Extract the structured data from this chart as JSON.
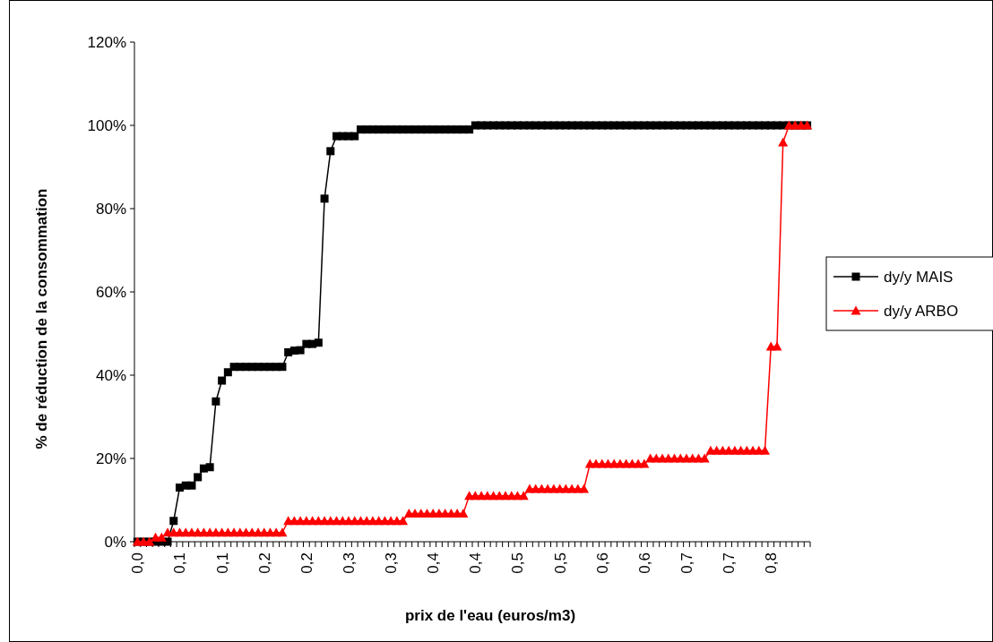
{
  "chart_data": {
    "type": "line",
    "xlabel": "prix de l'eau (euros/m3)",
    "ylabel": "% de réduction de la consommation",
    "categories": [
      "0,0",
      null,
      null,
      null,
      null,
      null,
      null,
      "0,1",
      null,
      null,
      null,
      null,
      null,
      null,
      "0,1",
      null,
      null,
      null,
      null,
      null,
      null,
      "0,2",
      null,
      null,
      null,
      null,
      null,
      null,
      "0,2",
      null,
      null,
      null,
      null,
      null,
      null,
      "0,3",
      null,
      null,
      null,
      null,
      null,
      null,
      "0,3",
      null,
      null,
      null,
      null,
      null,
      null,
      "0,4",
      null,
      null,
      null,
      null,
      null,
      null,
      "0,4",
      null,
      null,
      null,
      null,
      null,
      null,
      "0,5",
      null,
      null,
      null,
      null,
      null,
      null,
      "0,5",
      null,
      null,
      null,
      null,
      null,
      null,
      "0,6",
      null,
      null,
      null,
      null,
      null,
      null,
      "0,6",
      null,
      null,
      null,
      null,
      null,
      null,
      "0,7",
      null,
      null,
      null,
      null,
      null,
      null,
      "0,7",
      null,
      null,
      null,
      null,
      null,
      null,
      "0,8",
      null,
      null,
      null,
      null,
      null,
      null
    ],
    "ylim": [
      0,
      120
    ],
    "yticks": [
      {
        "value": 0,
        "label": "0%"
      },
      {
        "value": 20,
        "label": "20%"
      },
      {
        "value": 40,
        "label": "40%"
      },
      {
        "value": 60,
        "label": "60%"
      },
      {
        "value": 80,
        "label": "80%"
      },
      {
        "value": 100,
        "label": "100%"
      },
      {
        "value": 120,
        "label": "120%"
      }
    ],
    "legend": "right",
    "grid": false,
    "line_style": "solid",
    "series": [
      {
        "name": "dy/y MAIS",
        "color": "#000000",
        "marker": "square",
        "values": [
          0,
          0,
          0,
          0,
          0,
          0,
          5,
          13,
          13.5,
          13.5,
          15.5,
          17.6,
          17.9,
          33.7,
          38.7,
          40.7,
          42,
          42,
          42,
          42,
          42,
          42,
          42,
          42,
          42,
          45.5,
          45.9,
          46,
          47.5,
          47.5,
          47.8,
          82.4,
          93.8,
          97.4,
          97.4,
          97.4,
          97.4,
          99,
          99,
          99,
          99,
          99,
          99,
          99,
          99,
          99,
          99,
          99,
          99,
          99,
          99,
          99,
          99,
          99,
          99,
          99,
          100,
          100,
          100,
          100,
          100,
          100,
          100,
          100,
          100,
          100,
          100,
          100,
          100,
          100,
          100,
          100,
          100,
          100,
          100,
          100,
          100,
          100,
          100,
          100,
          100,
          100,
          100,
          100,
          100,
          100,
          100,
          100,
          100,
          100,
          100,
          100,
          100,
          100,
          100,
          100,
          100,
          100,
          100,
          100,
          100,
          100,
          100,
          100,
          100,
          100,
          100,
          100,
          100,
          100,
          100,
          100
        ]
      },
      {
        "name": "dy/y ARBO",
        "color": "#ff0000",
        "marker": "triangle",
        "values": [
          0,
          0,
          0,
          1,
          1,
          2.2,
          2.2,
          2.2,
          2.2,
          2.2,
          2.2,
          2.2,
          2.2,
          2.2,
          2.2,
          2.2,
          2.2,
          2.2,
          2.2,
          2.2,
          2.2,
          2.2,
          2.2,
          2.2,
          2.2,
          5,
          5,
          5,
          5,
          5,
          5,
          5,
          5,
          5,
          5,
          5,
          5,
          5,
          5,
          5,
          5,
          5,
          5,
          5,
          5,
          6.8,
          6.8,
          6.8,
          6.8,
          6.8,
          6.8,
          6.8,
          6.8,
          6.8,
          6.8,
          11,
          11,
          11,
          11,
          11,
          11,
          11,
          11,
          11,
          11,
          12.7,
          12.7,
          12.7,
          12.7,
          12.7,
          12.7,
          12.7,
          12.7,
          12.7,
          12.7,
          18.7,
          18.7,
          18.7,
          18.7,
          18.7,
          18.7,
          18.7,
          18.7,
          18.7,
          18.7,
          20,
          20,
          20,
          20,
          20,
          20,
          20,
          20,
          20,
          20,
          21.9,
          21.9,
          21.9,
          21.9,
          21.9,
          21.9,
          21.9,
          21.9,
          21.9,
          21.9,
          46.9,
          46.9,
          95.9,
          100,
          100,
          100,
          100
        ]
      }
    ]
  }
}
